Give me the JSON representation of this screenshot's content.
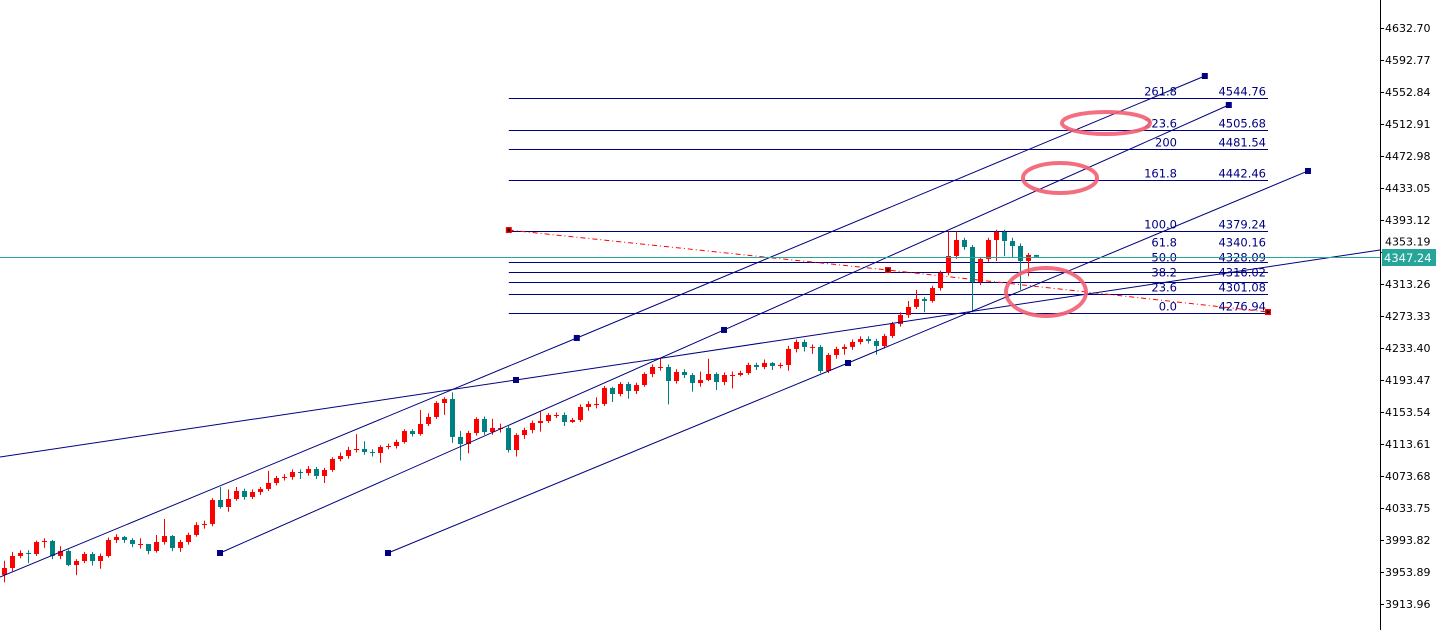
{
  "chart_data": {
    "type": "candlestick",
    "title": "",
    "xlabel": "",
    "ylabel": "",
    "ylim": [
      3913.96,
      4632.7
    ],
    "grid": false,
    "colors": {
      "up_candle": "#ff0000",
      "down_candle": "#008080",
      "trendline": "#000080",
      "fib_line": "#000080",
      "fib_baseline": "#ff0000",
      "current_price_line": "#26a69a",
      "annotation_ellipse": "#f25f72",
      "axis": "#000000"
    },
    "y_axis_ticks": [
      "4632.70",
      "4592.77",
      "4552.84",
      "4512.91",
      "4472.98",
      "4433.05",
      "4393.12",
      "4353.19",
      "4313.26",
      "4273.33",
      "4233.40",
      "4193.47",
      "4153.54",
      "4113.61",
      "4073.68",
      "4033.75",
      "3993.82",
      "3953.89",
      "3913.96"
    ],
    "current_price": {
      "value": 4347.24,
      "label": "4347.24"
    },
    "candles_ohlc": [
      [
        3950.2,
        3968,
        3941,
        3958.9
      ],
      [
        3958.9,
        3979,
        3955,
        3973.9
      ],
      [
        3973.9,
        3981,
        3971,
        3977.6
      ],
      [
        3977.6,
        3981,
        3965,
        3976.4
      ],
      [
        3976.4,
        3993,
        3974,
        3991.3
      ],
      [
        3991.3,
        3996,
        3984,
        3992.6
      ],
      [
        3992.6,
        3994,
        3970,
        3973.9
      ],
      [
        3973.9,
        3986,
        3970,
        3980.1
      ],
      [
        3980.1,
        3982,
        3961,
        3962.6
      ],
      [
        3962.6,
        3970,
        3950,
        3967.6
      ],
      [
        3967.6,
        3979,
        3965,
        3976.4
      ],
      [
        3976.4,
        3979,
        3962,
        3967.6
      ],
      [
        3967.6,
        3977,
        3958,
        3973.9
      ],
      [
        3973.9,
        3997,
        3972,
        3993.8
      ],
      [
        3993.8,
        4001,
        3990,
        3997.6
      ],
      [
        3997.6,
        3999,
        3990,
        3993.8
      ],
      [
        3993.8,
        3996,
        3985,
        3988.8
      ],
      [
        3988.8,
        3996,
        3983,
        3988.8
      ],
      [
        3988.8,
        3989,
        3976,
        3980.1
      ],
      [
        3980.1,
        4000,
        3978,
        3991.3
      ],
      [
        3991.3,
        4020,
        3988,
        3998.8
      ],
      [
        3998.8,
        4000,
        3980,
        3983.9
      ],
      [
        3983.9,
        3994,
        3979,
        3991.3
      ],
      [
        3991.3,
        4003,
        3988,
        4000.1
      ],
      [
        4000.1,
        4016,
        3998,
        4012.5
      ],
      [
        4012.5,
        4018,
        4008,
        4013.8
      ],
      [
        4013.8,
        4046,
        4011,
        4043.7
      ],
      [
        4043.7,
        4060,
        4033,
        4035.0
      ],
      [
        4035.0,
        4057,
        4029,
        4045.0
      ],
      [
        4045.0,
        4060,
        4043,
        4055.0
      ],
      [
        4055.0,
        4058,
        4044,
        4047.5
      ],
      [
        4047.5,
        4057,
        4045,
        4053.7
      ],
      [
        4053.7,
        4060,
        4050,
        4057.5
      ],
      [
        4057.5,
        4080,
        4055,
        4065.0
      ],
      [
        4065.0,
        4074,
        4062,
        4071.2
      ],
      [
        4071.2,
        4076,
        4068,
        4072.4
      ],
      [
        4072.4,
        4082,
        4069,
        4078.7
      ],
      [
        4078.7,
        4082,
        4070,
        4077.4
      ],
      [
        4077.4,
        4086,
        4074,
        4082.4
      ],
      [
        4082.4,
        4085,
        4070,
        4073.7
      ],
      [
        4073.7,
        4084,
        4065,
        4081.2
      ],
      [
        4081.2,
        4097,
        4079,
        4094.9
      ],
      [
        4094.9,
        4103,
        4092,
        4098.6
      ],
      [
        4098.6,
        4110,
        4095,
        4106.1
      ],
      [
        4106.1,
        4126,
        4103,
        4107.4
      ],
      [
        4107.4,
        4117,
        4100,
        4103.6
      ],
      [
        4103.6,
        4107,
        4098,
        4102.4
      ],
      [
        4102.4,
        4112,
        4090,
        4109.9
      ],
      [
        4109.9,
        4114,
        4107,
        4111.1
      ],
      [
        4111.1,
        4119,
        4108,
        4116.1
      ],
      [
        4116.1,
        4132,
        4114,
        4129.8
      ],
      [
        4129.8,
        4132,
        4123,
        4126.1
      ],
      [
        4126.1,
        4156,
        4124,
        4138.6
      ],
      [
        4138.6,
        4152,
        4136,
        4147.3
      ],
      [
        4147.3,
        4167,
        4145,
        4164.8
      ],
      [
        4164.8,
        4172,
        4150,
        4169.8
      ],
      [
        4169.8,
        4178,
        4115,
        4122.4
      ],
      [
        4122.4,
        4130,
        4093,
        4113.6
      ],
      [
        4113.6,
        4130,
        4102,
        4127.3
      ],
      [
        4127.3,
        4147,
        4124,
        4144.8
      ],
      [
        4144.8,
        4148,
        4125,
        4128.6
      ],
      [
        4128.6,
        4145,
        4125,
        4133.6
      ],
      [
        4133.6,
        4139,
        4128,
        4133.6
      ],
      [
        4133.6,
        4136,
        4103,
        4106.1
      ],
      [
        4106.1,
        4127,
        4098,
        4124.8
      ],
      [
        4124.8,
        4134,
        4120,
        4131.1
      ],
      [
        4131.1,
        4143,
        4127,
        4139.8
      ],
      [
        4139.8,
        4155,
        4129,
        4142.3
      ],
      [
        4142.3,
        4152,
        4140,
        4149.8
      ],
      [
        4149.8,
        4153,
        4146,
        4149.8
      ],
      [
        4149.8,
        4153,
        4136,
        4141.1
      ],
      [
        4141.1,
        4146,
        4140,
        4143.6
      ],
      [
        4143.6,
        4163,
        4141,
        4159.8
      ],
      [
        4159.8,
        4167,
        4155,
        4163.5
      ],
      [
        4163.5,
        4172,
        4158,
        4163.5
      ],
      [
        4163.5,
        4186,
        4161,
        4183.5
      ],
      [
        4183.5,
        4185,
        4166,
        4176.0
      ],
      [
        4176.0,
        4191,
        4173,
        4188.5
      ],
      [
        4188.5,
        4191,
        4170,
        4179.8
      ],
      [
        4179.8,
        4190,
        4176,
        4187.2
      ],
      [
        4187.2,
        4203,
        4185,
        4201.0
      ],
      [
        4201.0,
        4213,
        4197,
        4209.7
      ],
      [
        4209.7,
        4221,
        4205,
        4209.7
      ],
      [
        4209.7,
        4213,
        4163,
        4192.2
      ],
      [
        4192.2,
        4207,
        4189,
        4203.5
      ],
      [
        4203.5,
        4207,
        4196,
        4199.7
      ],
      [
        4199.7,
        4202,
        4179,
        4189.7
      ],
      [
        4189.7,
        4204,
        4185,
        4193.5
      ],
      [
        4193.5,
        4220,
        4192,
        4201.0
      ],
      [
        4201.0,
        4203,
        4181,
        4191.0
      ],
      [
        4191.0,
        4203,
        4187,
        4199.7
      ],
      [
        4199.7,
        4204,
        4183,
        4199.7
      ],
      [
        4199.7,
        4205,
        4198,
        4202.2
      ],
      [
        4202.2,
        4215,
        4200,
        4212.2
      ],
      [
        4212.2,
        4215,
        4206,
        4209.7
      ],
      [
        4209.7,
        4219,
        4207,
        4214.7
      ],
      [
        4214.7,
        4216,
        4206,
        4211.0
      ],
      [
        4211.0,
        4215,
        4208,
        4212.2
      ],
      [
        4212.2,
        4236,
        4205,
        4232.2
      ],
      [
        4232.2,
        4244,
        4228,
        4240.9
      ],
      [
        4240.9,
        4244,
        4229,
        4234.7
      ],
      [
        4234.7,
        4238,
        4226,
        4234.7
      ],
      [
        4234.7,
        4237,
        4202,
        4204.7
      ],
      [
        4204.7,
        4227,
        4202,
        4224.7
      ],
      [
        4224.7,
        4235,
        4220,
        4232.2
      ],
      [
        4232.2,
        4238,
        4225,
        4234.7
      ],
      [
        4234.7,
        4244,
        4231,
        4240.9
      ],
      [
        4240.9,
        4248,
        4238,
        4244.6
      ],
      [
        4244.6,
        4248,
        4239,
        4242.1
      ],
      [
        4242.1,
        4245,
        4225,
        4235.9
      ],
      [
        4235.9,
        4251,
        4233,
        4248.4
      ],
      [
        4248.4,
        4266,
        4246,
        4263.4
      ],
      [
        4263.4,
        4278,
        4260,
        4274.6
      ],
      [
        4274.6,
        4292,
        4271,
        4284.6
      ],
      [
        4284.6,
        4306,
        4282,
        4294.5
      ],
      [
        4294.5,
        4297,
        4278,
        4292.1
      ],
      [
        4292.1,
        4311,
        4290,
        4308.3
      ],
      [
        4308.3,
        4330,
        4305,
        4327.0
      ],
      [
        4327.0,
        4379,
        4324,
        4348.2
      ],
      [
        4348.2,
        4379,
        4345,
        4368.2
      ],
      [
        4368.2,
        4371,
        4356,
        4359.4
      ],
      [
        4359.4,
        4362,
        4278,
        4315.8
      ],
      [
        4315.8,
        4347,
        4312,
        4344.5
      ],
      [
        4344.5,
        4371,
        4341,
        4368.2
      ],
      [
        4368.2,
        4381,
        4342,
        4378.2
      ],
      [
        4378.2,
        4381,
        4348,
        4366.9
      ],
      [
        4366.9,
        4371,
        4347,
        4360.7
      ],
      [
        4360.7,
        4364,
        4306,
        4342.0
      ],
      [
        4342.0,
        4352,
        4323,
        4349.5
      ],
      [
        4349.5,
        4349.5,
        4347.2,
        4347.2
      ]
    ],
    "fibonacci": {
      "start": {
        "bar": 63.1,
        "price": 4380.6
      },
      "end": {
        "bar": 158,
        "price": 4278.3
      },
      "levels": [
        {
          "level": "261.8",
          "price": 4544.76,
          "price_label": "4544.76"
        },
        {
          "level": "223.6",
          "price": 4505.68,
          "price_label": "4505.68"
        },
        {
          "level": "200",
          "price": 4481.54,
          "price_label": "4481.54"
        },
        {
          "level": "161.8",
          "price": 4442.46,
          "price_label": "4442.46"
        },
        {
          "level": "100.0",
          "price": 4379.24,
          "price_label": "4379.24"
        },
        {
          "level": "61.8",
          "price": 4340.16,
          "price_label": "4340.16"
        },
        {
          "level": "50.0",
          "price": 4328.09,
          "price_label": "4328.09"
        },
        {
          "level": "38.2",
          "price": 4316.02,
          "price_label": "4316.02"
        },
        {
          "level": "23.6",
          "price": 4301.08,
          "price_label": "4301.08"
        },
        {
          "level": "0.0",
          "price": 4276.94,
          "price_label": "4276.94"
        }
      ],
      "baseline_points": [
        [
          63.1,
          4380.6
        ],
        [
          110.5,
          4330.7
        ],
        [
          158,
          4278.3
        ]
      ]
    },
    "trendlines": [
      {
        "points": [
          [
            -0.5,
            3947.6
          ],
          [
            71.6,
            4245.9
          ],
          [
            150.1,
            4572.8
          ]
        ],
        "handles": [
          1,
          2
        ]
      },
      {
        "points": [
          [
            27,
            3977.6
          ],
          [
            90,
            4255.9
          ],
          [
            153.1,
            4536.6
          ]
        ],
        "handles": [
          0,
          1,
          2
        ]
      },
      {
        "points": [
          [
            48,
            3977.6
          ],
          [
            105.5,
            4214.7
          ],
          [
            163,
            4454.3
          ]
        ],
        "handles": [
          0,
          1,
          2
        ]
      },
      {
        "points": [
          [
            -0.5,
            4097.4
          ],
          [
            64,
            4193.5
          ],
          [
            172,
            4355.7
          ]
        ],
        "handles": [
          1
        ]
      }
    ]
  }
}
